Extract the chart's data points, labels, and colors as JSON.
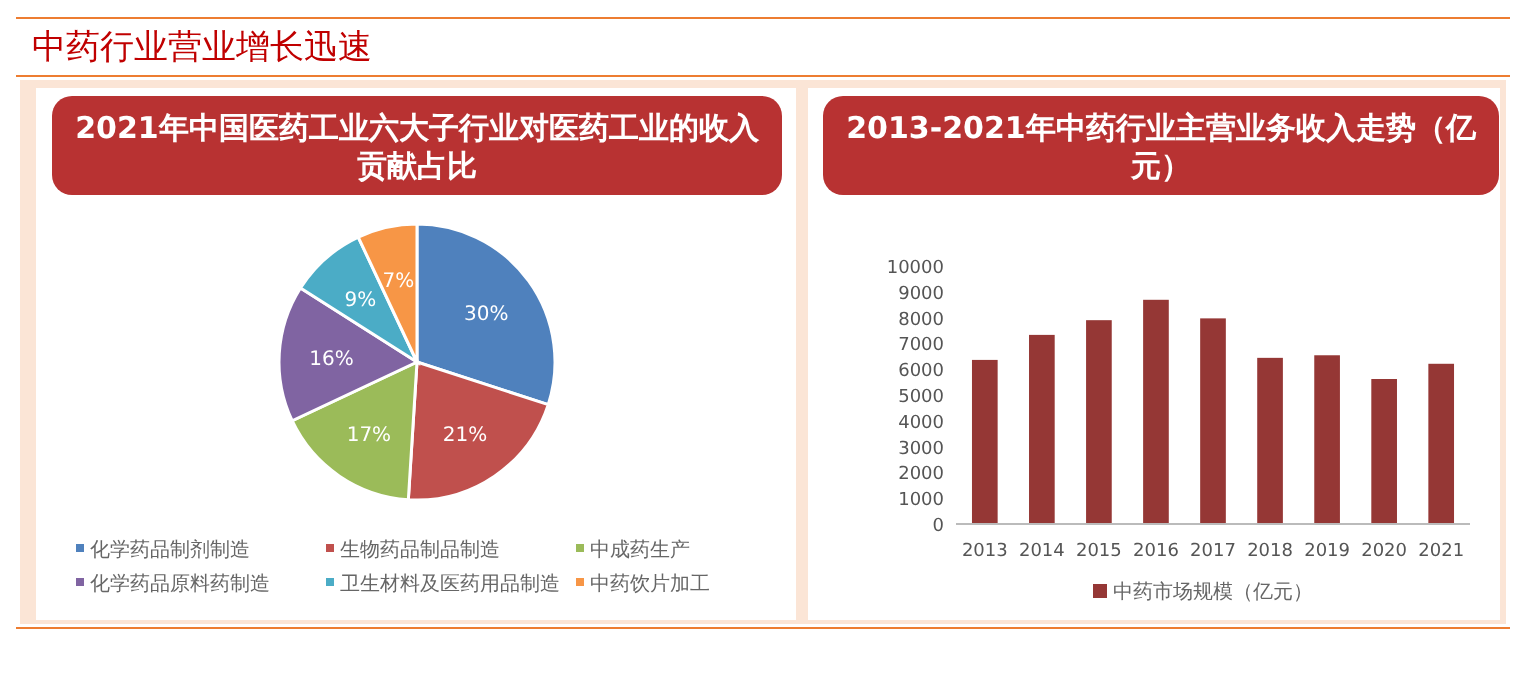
{
  "chart_data": [
    {
      "type": "pie",
      "title": "2021年中国医药工业六大子行业对医药工业的收入贡献占比",
      "annotations": [
        "中药行业营业增长迅速"
      ],
      "categories": [
        "化学药品制剂制造",
        "生物药品制品制造",
        "中成药生产",
        "化学药品原料药制造",
        "卫生材料及医药用品制造",
        "中药饮片加工"
      ],
      "values": [
        30,
        21,
        17,
        16,
        9,
        7
      ],
      "colors": [
        "#4f81bd",
        "#c0504d",
        "#9bbb59",
        "#8064a2",
        "#4bacc6",
        "#f79646"
      ],
      "value_labels": [
        "30%",
        "21%",
        "17%",
        "16%",
        "9%",
        "7%"
      ],
      "legend": "bottom"
    },
    {
      "type": "bar",
      "title": "2013-2021年中药行业主营业务收入走势（亿元）",
      "categories": [
        "2013",
        "2014",
        "2015",
        "2016",
        "2017",
        "2018",
        "2019",
        "2020",
        "2021"
      ],
      "series": [
        {
          "name": "中药市场规模（亿元）",
          "color": "#953735",
          "values": [
            6360,
            7330,
            7900,
            8690,
            7970,
            6440,
            6540,
            5620,
            6210
          ]
        }
      ],
      "ylim": [
        0,
        10000
      ],
      "yticks": [
        0,
        1000,
        2000,
        3000,
        4000,
        5000,
        6000,
        7000,
        8000,
        9000,
        10000
      ],
      "grid": false,
      "legend": "bottom"
    }
  ]
}
